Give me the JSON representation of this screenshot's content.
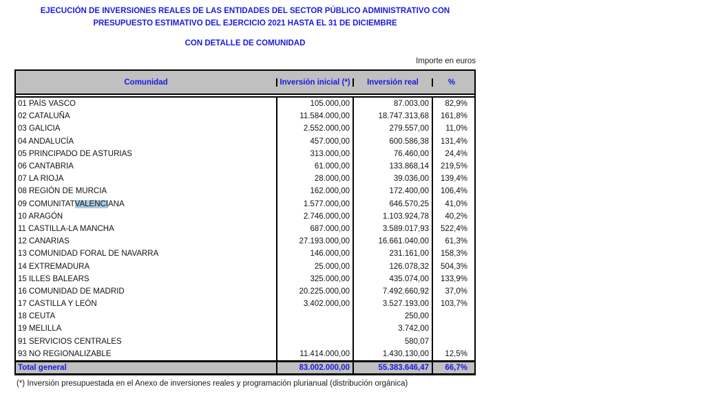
{
  "page": {
    "title_line1": "EJECUCIÓN DE INVERSIONES REALES DE LAS ENTIDADES DEL SECTOR PÚBLICO ADMINISTRATIVO CON",
    "title_line2": "PRESUPUESTO ESTIMATIVO DEL EJERCICIO 2021 HASTA EL 31 DE DICIEMBRE",
    "subtitle": "CON DETALLE DE COMUNIDAD",
    "unit_note": "Importe en euros",
    "footnote": "(*) Inversión presupuestada en el Anexo de inversiones reales y programación plurianual (distribución orgánica)"
  },
  "colors": {
    "title_blue": "#1a1ae0",
    "header_bg": "#c0c0c0",
    "highlight_bg": "#a9cbe2",
    "border": "#000000"
  },
  "table": {
    "columns": [
      "Comunidad",
      "Inversión inicial (*)",
      "Inversión real",
      "%"
    ],
    "rows": [
      {
        "name": "01 PAÍS VASCO",
        "inicial": "105.000,00",
        "real": "87.003,00",
        "pct": "82,9%"
      },
      {
        "name": "02 CATALUÑA",
        "inicial": "11.584.000,00",
        "real": "18.747.313,68",
        "pct": "161,8%"
      },
      {
        "name": "03 GALICIA",
        "inicial": "2.552.000,00",
        "real": "279.557,00",
        "pct": "11,0%"
      },
      {
        "name": "04 ANDALUCÍA",
        "inicial": "457.000,00",
        "real": "600.586,38",
        "pct": "131,4%"
      },
      {
        "name": "05 PRINCIPADO DE ASTURIAS",
        "inicial": "313.000,00",
        "real": "76.460,00",
        "pct": "24,4%"
      },
      {
        "name": "06 CANTABRIA",
        "inicial": "61.000,00",
        "real": "133.868,14",
        "pct": "219,5%"
      },
      {
        "name": "07 LA RIOJA",
        "inicial": "28.000,00",
        "real": "39.036,00",
        "pct": "139,4%"
      },
      {
        "name": "08 REGIÓN DE MURCIA",
        "inicial": "162.000,00",
        "real": "172.400,00",
        "pct": "106,4%"
      },
      {
        "name": "09 COMUNITAT VALENCIANA",
        "name_parts": [
          "09 COMUNITAT ",
          "VALENCI",
          "ANA"
        ],
        "inicial": "1.577.000,00",
        "real": "646.570,25",
        "pct": "41,0%"
      },
      {
        "name": "10 ARAGÓN",
        "inicial": "2.746.000,00",
        "real": "1.103.924,78",
        "pct": "40,2%"
      },
      {
        "name": "11 CASTILLA-LA MANCHA",
        "inicial": "687.000,00",
        "real": "3.589.017,93",
        "pct": "522,4%"
      },
      {
        "name": "12 CANARIAS",
        "inicial": "27.193.000,00",
        "real": "16.661.040,00",
        "pct": "61,3%"
      },
      {
        "name": "13 COMUNIDAD FORAL DE NAVARRA",
        "inicial": "146.000,00",
        "real": "231.161,00",
        "pct": "158,3%"
      },
      {
        "name": "14 EXTREMADURA",
        "inicial": "25.000,00",
        "real": "126.078,32",
        "pct": "504,3%"
      },
      {
        "name": "15 ILLES BALEARS",
        "inicial": "325.000,00",
        "real": "435.074,00",
        "pct": "133,9%"
      },
      {
        "name": "16 COMUNIDAD DE MADRID",
        "inicial": "20.225.000,00",
        "real": "7.492.660,92",
        "pct": "37,0%"
      },
      {
        "name": "17 CASTILLA Y LEÓN",
        "inicial": "3.402.000,00",
        "real": "3.527.193,00",
        "pct": "103,7%"
      },
      {
        "name": "18 CEUTA",
        "inicial": "",
        "real": "250,00",
        "pct": ""
      },
      {
        "name": "19 MELILLA",
        "inicial": "",
        "real": "3.742,00",
        "pct": ""
      },
      {
        "name": "91 SERVICIOS CENTRALES",
        "inicial": "",
        "real": "580,07",
        "pct": ""
      },
      {
        "name": "93 NO REGIONALIZABLE",
        "inicial": "11.414.000,00",
        "real": "1.430.130,00",
        "pct": "12,5%"
      }
    ],
    "total": {
      "name": "Total general",
      "inicial": "83.002.000,00",
      "real": "55.383.646,47",
      "pct": "66,7%"
    }
  }
}
